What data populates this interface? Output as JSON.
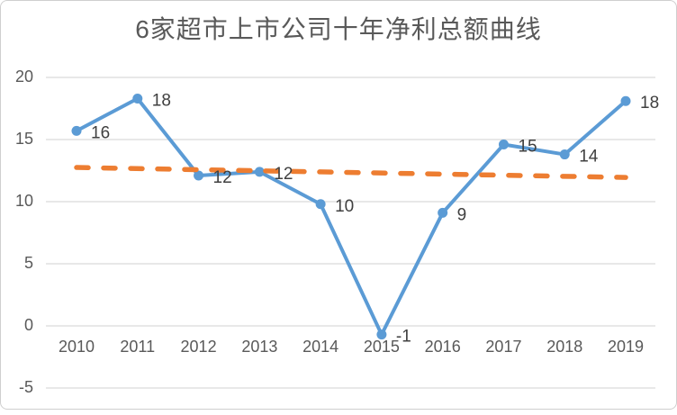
{
  "chart_data": {
    "type": "line",
    "title": "6家超市上市公司十年净利总额曲线",
    "categories": [
      "2010",
      "2011",
      "2012",
      "2013",
      "2014",
      "2015",
      "2016",
      "2017",
      "2018",
      "2019"
    ],
    "series": [
      {
        "id": "main-series",
        "values": [
          15.7,
          18.3,
          12.1,
          12.4,
          9.8,
          -0.7,
          9.1,
          14.6,
          13.8,
          18.1
        ],
        "point_labels": [
          "16",
          "18",
          "12",
          "12",
          "10",
          "-1",
          "9",
          "15",
          "14",
          "18"
        ],
        "color": "#5B9BD5",
        "style": "solid",
        "marker": "circle"
      },
      {
        "id": "trendline",
        "values": [
          12.75,
          11.95
        ],
        "point_labels": [],
        "color": "#ED7D31",
        "style": "dashed",
        "marker": "none"
      }
    ],
    "yticks": [
      20,
      15,
      10,
      5,
      0,
      -5
    ],
    "ylim": [
      -5,
      20
    ],
    "grid": "horizontal",
    "legend": "none",
    "xlabel": "",
    "ylabel": ""
  },
  "colors": {
    "main_line": "#5B9BD5",
    "trendline": "#ED7D31",
    "gridline": "#D9D9D9",
    "axis_text": "#595959",
    "data_label_text": "#404040",
    "title_text": "#595959",
    "background": "#FFFFFF",
    "frame_border": "#CFCFCF"
  }
}
